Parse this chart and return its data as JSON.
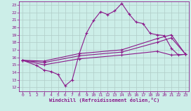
{
  "xlabel": "Windchill (Refroidissement éolien,°C)",
  "xlim": [
    -0.5,
    23.5
  ],
  "ylim": [
    11.5,
    23.5
  ],
  "yticks": [
    12,
    13,
    14,
    15,
    16,
    17,
    18,
    19,
    20,
    21,
    22,
    23
  ],
  "xticks": [
    0,
    1,
    2,
    3,
    4,
    5,
    6,
    7,
    8,
    9,
    10,
    11,
    12,
    13,
    14,
    15,
    16,
    17,
    18,
    19,
    20,
    21,
    22,
    23
  ],
  "bg_color": "#cceee8",
  "line_color": "#8B1A8B",
  "grid_color": "#b0ccc8",
  "lines": [
    {
      "x": [
        0,
        2,
        3,
        4,
        5,
        6,
        7,
        8,
        9,
        10,
        11,
        12,
        13,
        14,
        15,
        16,
        17,
        18,
        19,
        20,
        21,
        22,
        23
      ],
      "y": [
        15.6,
        14.9,
        14.3,
        14.1,
        13.7,
        12.2,
        13.0,
        16.5,
        19.2,
        20.9,
        22.1,
        21.7,
        22.2,
        23.2,
        21.8,
        20.7,
        20.5,
        19.2,
        19.0,
        18.9,
        17.2,
        16.3,
        16.4
      ]
    },
    {
      "x": [
        0,
        3,
        8,
        14,
        19,
        21,
        23
      ],
      "y": [
        15.6,
        15.5,
        16.5,
        17.0,
        18.5,
        19.0,
        16.4
      ]
    },
    {
      "x": [
        0,
        3,
        8,
        14,
        19,
        21,
        23
      ],
      "y": [
        15.6,
        15.3,
        16.2,
        16.7,
        18.0,
        18.6,
        16.4
      ]
    },
    {
      "x": [
        0,
        3,
        8,
        14,
        19,
        21,
        23
      ],
      "y": [
        15.6,
        15.0,
        15.8,
        16.3,
        16.8,
        16.3,
        16.4
      ]
    }
  ]
}
